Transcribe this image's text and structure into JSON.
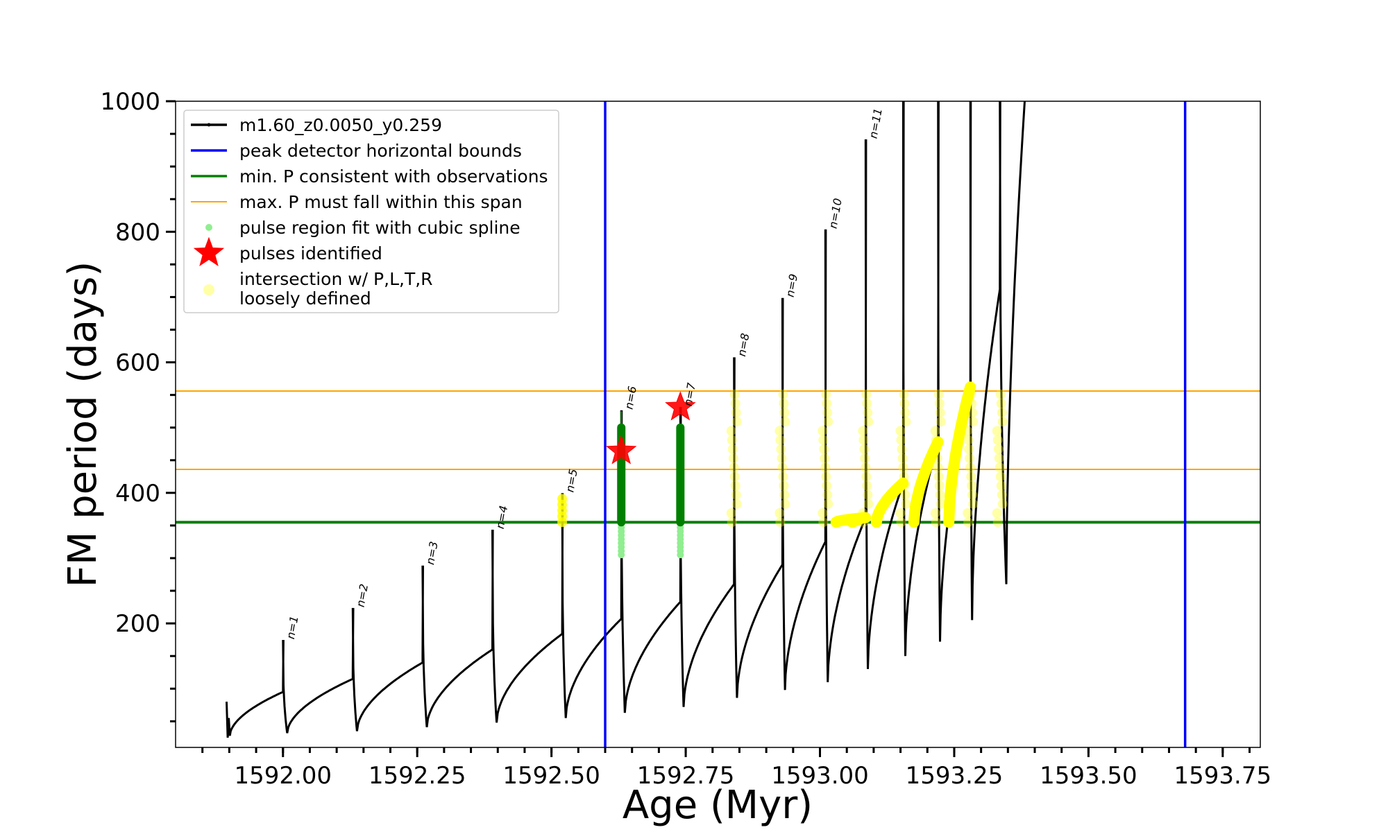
{
  "chart_data": {
    "type": "line",
    "xlabel": "Age (Myr)",
    "ylabel": "FM period (days)",
    "xlim": [
      1591.8,
      1593.82
    ],
    "ylim": [
      10,
      1000
    ],
    "x_ticks": [
      1592.0,
      1592.25,
      1592.5,
      1592.75,
      1593.0,
      1593.25,
      1593.5,
      1593.75
    ],
    "x_tick_labels": [
      "1592.00",
      "1592.25",
      "1592.50",
      "1592.75",
      "1593.00",
      "1593.25",
      "1593.50",
      "1593.75"
    ],
    "y_ticks": [
      200,
      400,
      600,
      800,
      1000
    ],
    "y_tick_labels": [
      "200",
      "400",
      "600",
      "800",
      "1000"
    ],
    "grid": false,
    "legend_position": "top-left",
    "colors": {
      "track": "#000000",
      "bounds": "#0000ff",
      "min_p": "#008000",
      "max_p": "#ffa500",
      "spline": "#90ee90",
      "pulse": "#ff0000",
      "intersection": "#ffff00"
    },
    "legend": [
      {
        "key": "track",
        "label": "m1.60_z0.0050_y0.259",
        "marker": "line-dot"
      },
      {
        "key": "bounds",
        "label": "peak detector horizontal bounds",
        "marker": "line"
      },
      {
        "key": "min_p",
        "label": "min. P consistent with observations",
        "marker": "line"
      },
      {
        "key": "max_p",
        "label": "max. P must fall within this span",
        "marker": "line"
      },
      {
        "key": "spline",
        "label": "pulse region fit with cubic spline",
        "marker": "dot"
      },
      {
        "key": "pulse",
        "label": "pulses identified",
        "marker": "star"
      },
      {
        "key": "intersection",
        "label": "intersection w/ P,L,T,R",
        "label2": "loosely defined",
        "marker": "circle"
      }
    ],
    "vertical_bounds": [
      1592.6,
      1593.68
    ],
    "min_period": 355,
    "max_period_span": [
      436,
      556
    ],
    "pulses": [
      {
        "label": "n=1",
        "age": 1592.0,
        "peak": 173,
        "min_before": 95,
        "min_after": 32
      },
      {
        "label": "n=2",
        "age": 1592.13,
        "peak": 222,
        "min_before": 115,
        "min_after": 35
      },
      {
        "label": "n=3",
        "age": 1592.26,
        "peak": 287,
        "min_before": 140,
        "min_after": 41
      },
      {
        "label": "n=4",
        "age": 1592.39,
        "peak": 342,
        "min_before": 160,
        "min_after": 48
      },
      {
        "label": "n=5",
        "age": 1592.52,
        "peak": 398,
        "min_before": 184,
        "min_after": 55
      },
      {
        "label": "n=6",
        "age": 1592.63,
        "peak": 525,
        "min_before": 207,
        "min_after": 63
      },
      {
        "label": "n=7",
        "age": 1592.74,
        "peak": 530,
        "min_before": 233,
        "min_after": 72
      },
      {
        "label": "n=8",
        "age": 1592.84,
        "peak": 606,
        "min_before": 260,
        "min_after": 86
      },
      {
        "label": "n=9",
        "age": 1592.93,
        "peak": 697,
        "min_before": 290,
        "min_after": 98
      },
      {
        "label": "n=10",
        "age": 1593.01,
        "peak": 802,
        "min_before": 325,
        "min_after": 110
      },
      {
        "label": "n=11",
        "age": 1593.085,
        "peak": 940,
        "min_before": 362,
        "min_after": 130
      },
      {
        "label": "",
        "age": 1593.155,
        "peak": 1000,
        "min_before": 415,
        "min_after": 150
      },
      {
        "label": "",
        "age": 1593.22,
        "peak": 1000,
        "min_before": 478,
        "min_after": 172
      },
      {
        "label": "",
        "age": 1593.28,
        "peak": 1000,
        "min_before": 562,
        "min_after": 205
      },
      {
        "label": "",
        "age": 1593.335,
        "peak": 1000,
        "min_before": 712,
        "min_after": 260
      }
    ],
    "identified_pulses": [
      {
        "age": 1592.63,
        "period": 464
      },
      {
        "age": 1592.74,
        "period": 531
      }
    ]
  }
}
